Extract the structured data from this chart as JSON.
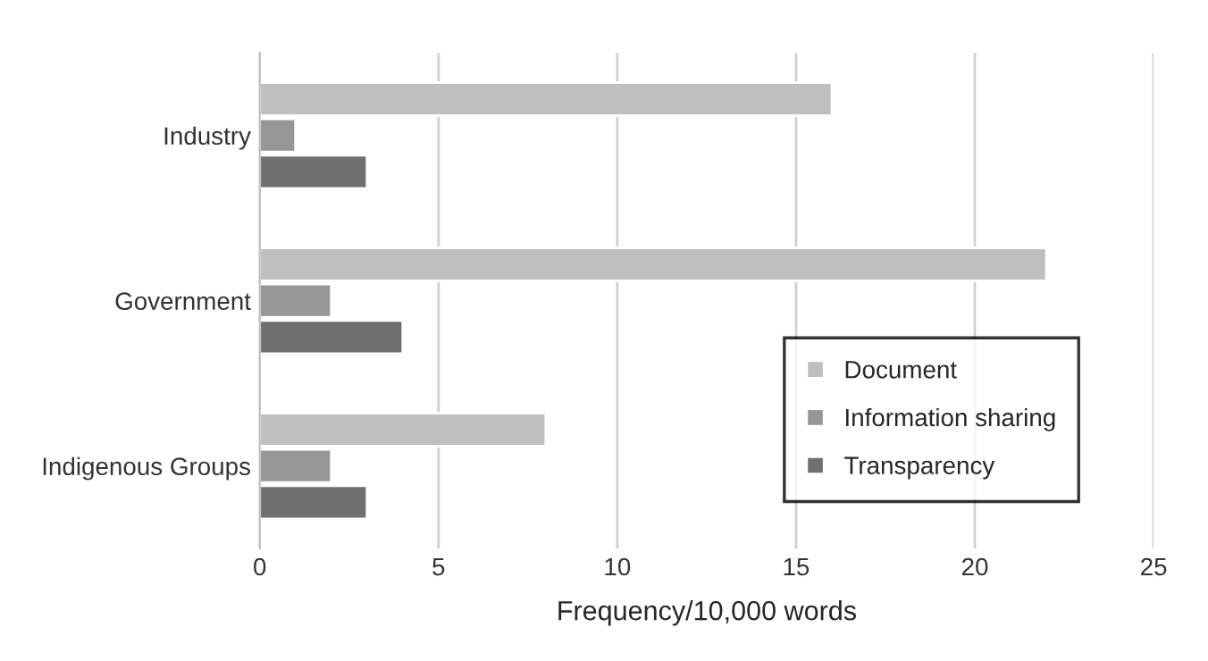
{
  "chart_data": {
    "type": "bar",
    "orientation": "horizontal",
    "xlabel": "Frequency/10,000 words",
    "categories": [
      "Industry",
      "Government",
      "Indigenous Groups"
    ],
    "series": [
      {
        "name": "Document",
        "color": "#bfbfbf",
        "values": [
          16,
          22,
          8
        ]
      },
      {
        "name": "Information sharing",
        "color": "#969696",
        "values": [
          1,
          2,
          2
        ]
      },
      {
        "name": "Transparency",
        "color": "#6f6f6f",
        "values": [
          3,
          4,
          3
        ]
      }
    ],
    "xlim": [
      0,
      25
    ],
    "xticks": [
      0,
      5,
      10,
      15,
      20,
      25
    ],
    "grid": "x",
    "legend": "lower right"
  }
}
